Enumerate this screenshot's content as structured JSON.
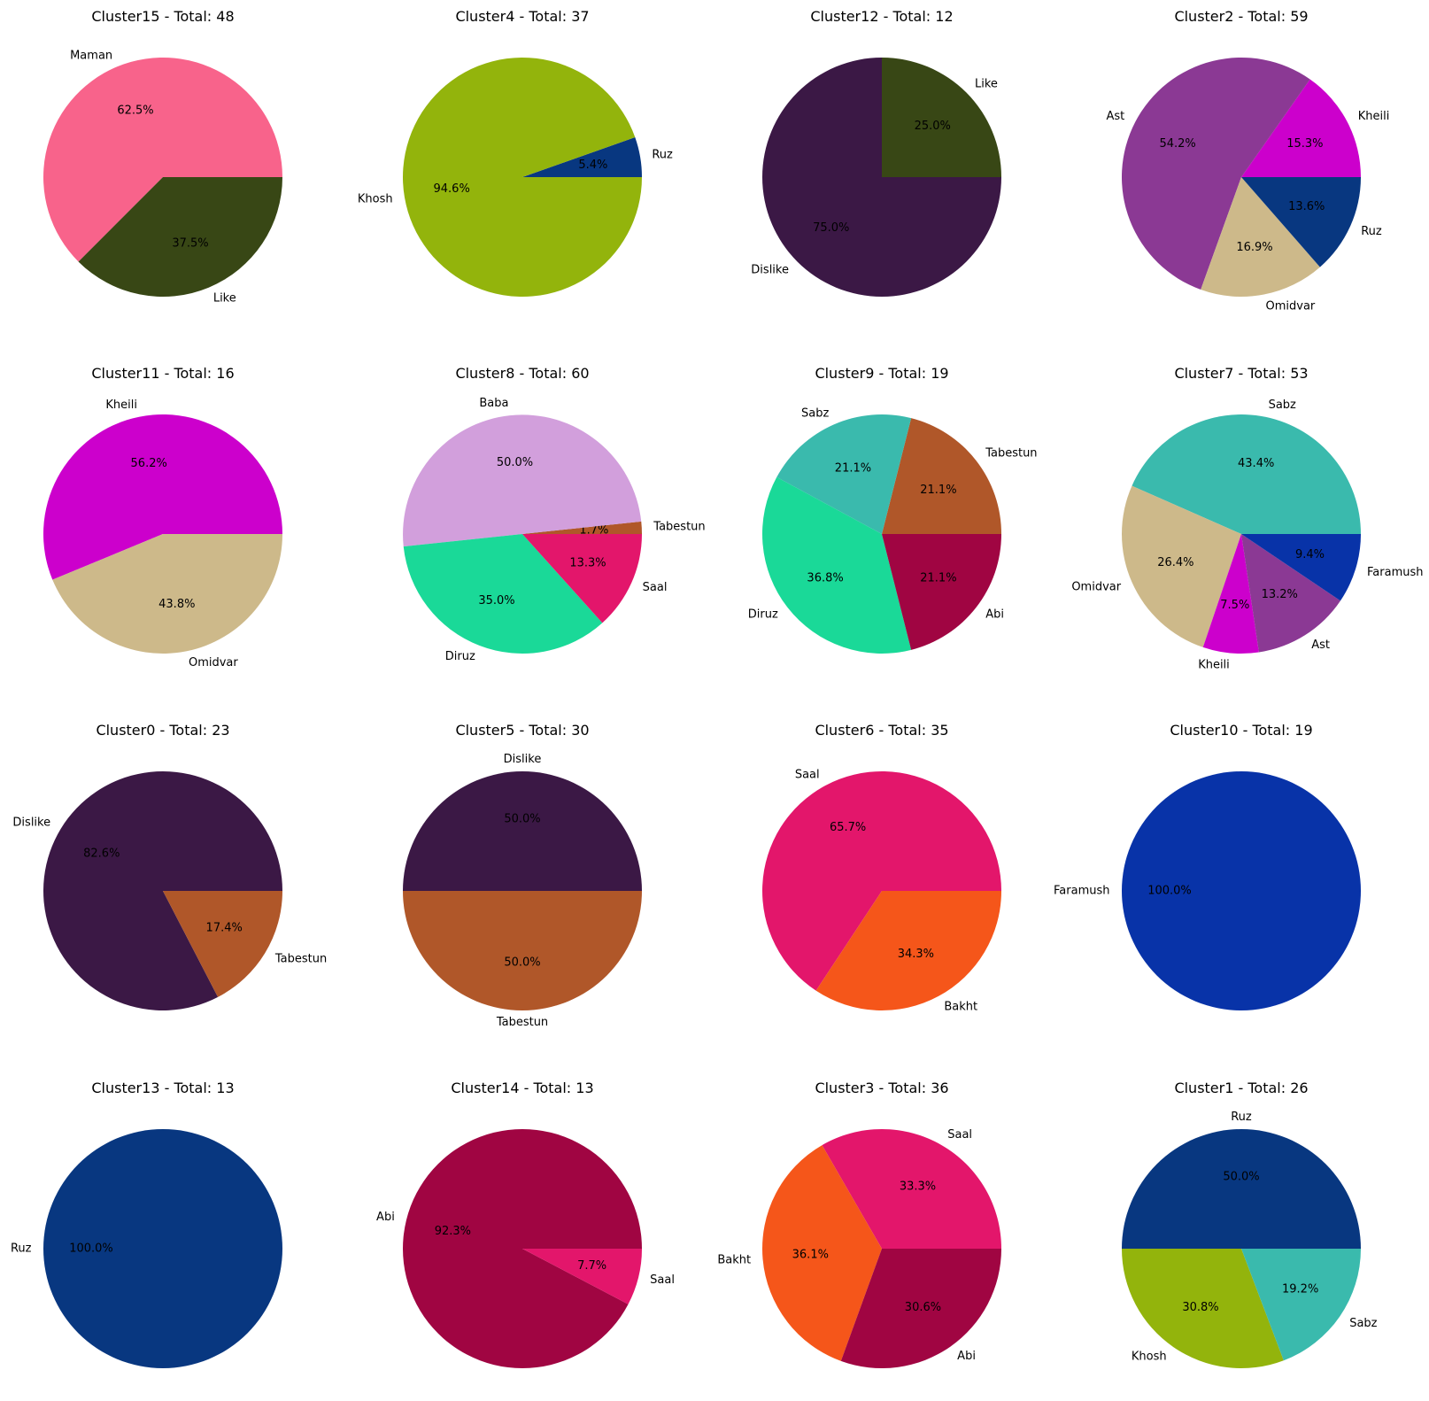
{
  "chart_data": [
    {
      "type": "pie",
      "title": "Cluster15 - Total: 48",
      "slices": [
        {
          "label": "Maman",
          "value": 30,
          "pct": "62.5%",
          "color": "#f8638b"
        },
        {
          "label": "Like",
          "value": 18,
          "pct": "37.5%",
          "color": "#384715"
        }
      ]
    },
    {
      "type": "pie",
      "title": "Cluster4 - Total: 37",
      "slices": [
        {
          "label": "Ruz",
          "value": 2,
          "pct": "5.4%",
          "color": "#083780"
        },
        {
          "label": "Khosh",
          "value": 35,
          "pct": "94.6%",
          "color": "#93b40c"
        }
      ]
    },
    {
      "type": "pie",
      "title": "Cluster12 - Total: 12",
      "slices": [
        {
          "label": "Like",
          "value": 3,
          "pct": "25.0%",
          "color": "#384715"
        },
        {
          "label": "Dislike",
          "value": 9,
          "pct": "75.0%",
          "color": "#3b1845"
        }
      ]
    },
    {
      "type": "pie",
      "title": "Cluster2 - Total: 59",
      "slices": [
        {
          "label": "Kheili",
          "value": 9,
          "pct": "15.3%",
          "color": "#cc00cc"
        },
        {
          "label": "Ast",
          "value": 32,
          "pct": "54.2%",
          "color": "#8b3994"
        },
        {
          "label": "Omidvar",
          "value": 10,
          "pct": "16.9%",
          "color": "#cdb98a"
        },
        {
          "label": "Ruz",
          "value": 8,
          "pct": "13.6%",
          "color": "#083780"
        }
      ]
    },
    {
      "type": "pie",
      "title": "Cluster11 - Total: 16",
      "slices": [
        {
          "label": "Kheili",
          "value": 9,
          "pct": "56.2%",
          "color": "#cc00cc"
        },
        {
          "label": "Omidvar",
          "value": 7,
          "pct": "43.8%",
          "color": "#cdb98a"
        }
      ]
    },
    {
      "type": "pie",
      "title": "Cluster8 - Total: 60",
      "slices": [
        {
          "label": "Tabestun",
          "value": 1,
          "pct": "1.7%",
          "color": "#b05729"
        },
        {
          "label": "Baba",
          "value": 30,
          "pct": "50.0%",
          "color": "#d29fdc"
        },
        {
          "label": "Diruz",
          "value": 21,
          "pct": "35.0%",
          "color": "#1ad998"
        },
        {
          "label": "Saal",
          "value": 8,
          "pct": "13.3%",
          "color": "#e3166b"
        }
      ]
    },
    {
      "type": "pie",
      "title": "Cluster9 - Total: 19",
      "slices": [
        {
          "label": "Tabestun",
          "value": 4,
          "pct": "21.1%",
          "color": "#b05729"
        },
        {
          "label": "Sabz",
          "value": 4,
          "pct": "21.1%",
          "color": "#3abaad"
        },
        {
          "label": "Diruz",
          "value": 7,
          "pct": "36.8%",
          "color": "#1ad998"
        },
        {
          "label": "Abi",
          "value": 4,
          "pct": "21.1%",
          "color": "#a00542"
        }
      ]
    },
    {
      "type": "pie",
      "title": "Cluster7 - Total: 53",
      "slices": [
        {
          "label": "Sabz",
          "value": 23,
          "pct": "43.4%",
          "color": "#3abaad"
        },
        {
          "label": "Omidvar",
          "value": 14,
          "pct": "26.4%",
          "color": "#cdb98a"
        },
        {
          "label": "Kheili",
          "value": 4,
          "pct": "7.5%",
          "color": "#cc00cc"
        },
        {
          "label": "Ast",
          "value": 7,
          "pct": "13.2%",
          "color": "#8b3994"
        },
        {
          "label": "Faramush",
          "value": 5,
          "pct": "9.4%",
          "color": "#0833a8"
        }
      ]
    },
    {
      "type": "pie",
      "title": "Cluster0 - Total: 23",
      "slices": [
        {
          "label": "Dislike",
          "value": 19,
          "pct": "82.6%",
          "color": "#3b1845"
        },
        {
          "label": "Tabestun",
          "value": 4,
          "pct": "17.4%",
          "color": "#b05729"
        }
      ]
    },
    {
      "type": "pie",
      "title": "Cluster5 - Total: 30",
      "slices": [
        {
          "label": "Dislike",
          "value": 15,
          "pct": "50.0%",
          "color": "#3b1845"
        },
        {
          "label": "Tabestun",
          "value": 15,
          "pct": "50.0%",
          "color": "#b05729"
        }
      ]
    },
    {
      "type": "pie",
      "title": "Cluster6 - Total: 35",
      "slices": [
        {
          "label": "Saal",
          "value": 23,
          "pct": "65.7%",
          "color": "#e3166b"
        },
        {
          "label": "Bakht",
          "value": 12,
          "pct": "34.3%",
          "color": "#f5561a"
        }
      ]
    },
    {
      "type": "pie",
      "title": "Cluster10 - Total: 19",
      "slices": [
        {
          "label": "Faramush",
          "value": 19,
          "pct": "100.0%",
          "color": "#0833a8"
        }
      ]
    },
    {
      "type": "pie",
      "title": "Cluster13 - Total: 13",
      "slices": [
        {
          "label": "Ruz",
          "value": 13,
          "pct": "100.0%",
          "color": "#083780"
        }
      ]
    },
    {
      "type": "pie",
      "title": "Cluster14 - Total: 13",
      "slices": [
        {
          "label": "Abi",
          "value": 12,
          "pct": "92.3%",
          "color": "#a00542"
        },
        {
          "label": "Saal",
          "value": 1,
          "pct": "7.7%",
          "color": "#e3166b"
        }
      ]
    },
    {
      "type": "pie",
      "title": "Cluster3 - Total: 36",
      "slices": [
        {
          "label": "Saal",
          "value": 12,
          "pct": "33.3%",
          "color": "#e3166b"
        },
        {
          "label": "Bakht",
          "value": 13,
          "pct": "36.1%",
          "color": "#f5561a"
        },
        {
          "label": "Abi",
          "value": 11,
          "pct": "30.6%",
          "color": "#a00542"
        }
      ]
    },
    {
      "type": "pie",
      "title": "Cluster1 - Total: 26",
      "slices": [
        {
          "label": "Ruz",
          "value": 13,
          "pct": "50.0%",
          "color": "#083780"
        },
        {
          "label": "Khosh",
          "value": 8,
          "pct": "30.8%",
          "color": "#93b40c"
        },
        {
          "label": "Sabz",
          "value": 5,
          "pct": "19.2%",
          "color": "#3abaad"
        }
      ]
    }
  ]
}
